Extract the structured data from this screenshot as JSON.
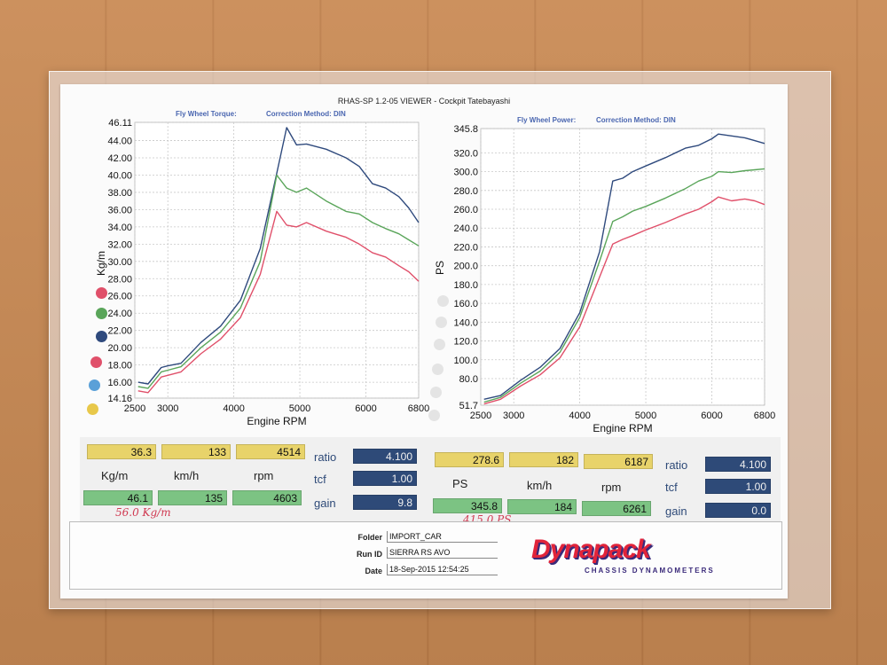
{
  "header": {
    "title": "RHAS-SP 1.2-05 VIEWER - Cockpit Tatebayashi"
  },
  "colors": {
    "blue": "#2f4a7d",
    "green": "#5aa55a",
    "red": "#e0506a",
    "yellow_cell": "#e8d36a",
    "green_cell": "#7cc383",
    "navy_cell": "#2e4a78"
  },
  "chart_data": [
    {
      "type": "line",
      "title": "Fly Wheel Torque:",
      "subtitle": "Correction Method: DIN",
      "xlabel": "Engine RPM",
      "ylabel": "Kg/m",
      "xlim": [
        2500,
        6800
      ],
      "ylim": [
        14.16,
        46.11
      ],
      "xticks": [
        2500,
        3000,
        4000,
        5000,
        6000,
        6800
      ],
      "yticks": [
        "46.11",
        "44.00",
        "42.00",
        "40.00",
        "38.00",
        "36.00",
        "34.00",
        "32.00",
        "30.00",
        "28.00",
        "26.00",
        "24.00",
        "22.00",
        "20.00",
        "18.00",
        "16.00",
        "14.16"
      ],
      "grid": true,
      "series": [
        {
          "color": "#2f4a7d",
          "x": [
            2550,
            2700,
            2900,
            3000,
            3200,
            3500,
            3800,
            4100,
            4400,
            4650,
            4800,
            4950,
            5100,
            5400,
            5700,
            5900,
            6100,
            6300,
            6500,
            6650,
            6800
          ],
          "y": [
            16.0,
            15.8,
            17.7,
            17.9,
            18.2,
            20.6,
            22.5,
            25.5,
            31.5,
            40.2,
            45.5,
            43.5,
            43.6,
            43.0,
            42.0,
            41.0,
            39.0,
            38.5,
            37.5,
            36.2,
            34.5
          ]
        },
        {
          "color": "#5aa55a",
          "x": [
            2550,
            2700,
            2900,
            3000,
            3200,
            3500,
            3800,
            4100,
            4400,
            4650,
            4800,
            4950,
            5100,
            5400,
            5700,
            5900,
            6100,
            6300,
            6500,
            6650,
            6800
          ],
          "y": [
            15.5,
            15.3,
            17.2,
            17.4,
            17.8,
            20.0,
            21.8,
            24.6,
            30.0,
            40.0,
            38.5,
            38.0,
            38.5,
            37.0,
            35.8,
            35.5,
            34.5,
            33.8,
            33.2,
            32.5,
            31.8
          ]
        },
        {
          "color": "#e0506a",
          "x": [
            2550,
            2700,
            2900,
            3000,
            3200,
            3500,
            3800,
            4100,
            4400,
            4650,
            4800,
            4950,
            5100,
            5400,
            5700,
            5900,
            6100,
            6300,
            6500,
            6650,
            6800
          ],
          "y": [
            15.0,
            14.8,
            16.6,
            16.8,
            17.2,
            19.3,
            21.0,
            23.5,
            28.5,
            35.8,
            34.2,
            34.0,
            34.5,
            33.5,
            32.8,
            32.0,
            31.0,
            30.5,
            29.5,
            28.8,
            27.7
          ]
        }
      ]
    },
    {
      "type": "line",
      "title": "Fly Wheel Power:",
      "subtitle": "Correction Method: DIN",
      "xlabel": "Engine RPM",
      "ylabel": "PS",
      "xlim": [
        2500,
        6800
      ],
      "ylim": [
        51.7,
        345.8
      ],
      "xticks": [
        2500,
        3000,
        4000,
        5000,
        6000,
        6800
      ],
      "yticks": [
        "345.8",
        "320.0",
        "300.0",
        "280.0",
        "260.0",
        "240.0",
        "220.0",
        "200.0",
        "180.0",
        "160.0",
        "140.0",
        "120.0",
        "100.0",
        "80.0",
        "51.7"
      ],
      "grid": true,
      "series": [
        {
          "color": "#2f4a7d",
          "x": [
            2550,
            2800,
            3100,
            3400,
            3700,
            4000,
            4300,
            4500,
            4650,
            4800,
            5000,
            5300,
            5600,
            5800,
            6000,
            6100,
            6300,
            6500,
            6650,
            6800
          ],
          "y": [
            58,
            62,
            78,
            92,
            112,
            150,
            215,
            290,
            293,
            300,
            306,
            315,
            325,
            328,
            335,
            340,
            338,
            336,
            333,
            330
          ]
        },
        {
          "color": "#5aa55a",
          "x": [
            2550,
            2800,
            3100,
            3400,
            3700,
            4000,
            4300,
            4500,
            4650,
            4800,
            5000,
            5300,
            5600,
            5800,
            6000,
            6100,
            6300,
            6500,
            6650,
            6800
          ],
          "y": [
            55,
            60,
            75,
            88,
            108,
            145,
            205,
            247,
            252,
            258,
            263,
            272,
            282,
            290,
            295,
            300,
            299,
            301,
            302,
            303
          ]
        },
        {
          "color": "#e0506a",
          "x": [
            2550,
            2800,
            3100,
            3400,
            3700,
            4000,
            4300,
            4500,
            4650,
            4800,
            5000,
            5300,
            5600,
            5800,
            6000,
            6100,
            6300,
            6500,
            6650,
            6800
          ],
          "y": [
            53,
            58,
            72,
            84,
            102,
            135,
            188,
            223,
            228,
            232,
            238,
            246,
            255,
            260,
            268,
            273,
            269,
            271,
            269,
            265
          ]
        }
      ]
    }
  ],
  "stats": {
    "left": {
      "max_torque": "36.3",
      "max_torque_speed": "133",
      "max_torque_rpm": "4514",
      "peak_torque": "46.1",
      "peak_speed": "135",
      "peak_rpm": "4603",
      "unit_torque": "Kg/m",
      "unit_speed": "km/h",
      "unit_rpm": "rpm",
      "ratio_label": "ratio",
      "ratio_value": "4.100",
      "tcf_label": "tcf",
      "tcf_value": "1.00",
      "gain_label": "gain",
      "gain_value": "9.8",
      "handwritten": "56.0 Kg/m"
    },
    "right": {
      "max_power": "278.6",
      "max_power_speed": "182",
      "max_power_rpm": "6187",
      "peak_power": "345.8",
      "peak_speed": "184",
      "peak_rpm": "6261",
      "unit_power": "PS",
      "unit_speed": "km/h",
      "unit_rpm": "rpm",
      "ratio_label": "ratio",
      "ratio_value": "4.100",
      "tcf_label": "tcf",
      "tcf_value": "1.00",
      "gain_label": "gain",
      "gain_value": "0.0",
      "handwritten": "415.0 PS"
    }
  },
  "info": {
    "folder_label": "Folder",
    "folder_value": "IMPORT_CAR",
    "runid_label": "Run ID",
    "runid_value": "SIERRA RS AVO",
    "date_label": "Date",
    "date_value": "18-Sep-2015  12:54:25"
  },
  "logo": {
    "name": "Dynapack",
    "tagline": "CHASSIS DYNAMOMETERS"
  }
}
